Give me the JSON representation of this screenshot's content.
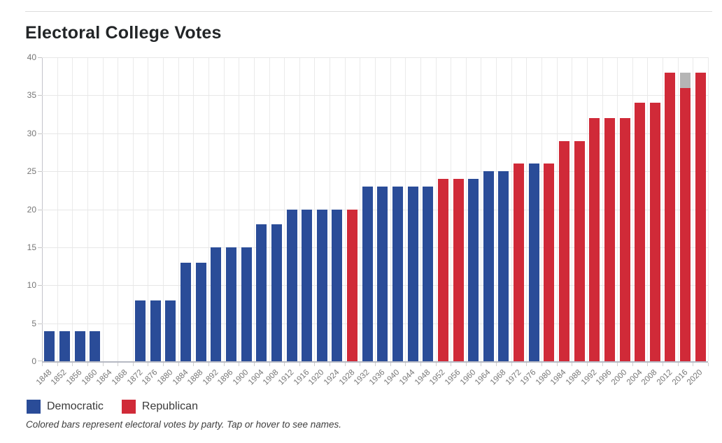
{
  "page": {
    "title": "Electoral College Votes",
    "footnote": "Colored bars represent electoral votes by party. Tap or hover to see names."
  },
  "legend": [
    {
      "label": "Democratic",
      "party": "democratic"
    },
    {
      "label": "Republican",
      "party": "republican"
    }
  ],
  "colors": {
    "democratic": "#2a4c98",
    "republican": "#d02a38",
    "other": "#b5b5b5",
    "grid": "#e7e7e7",
    "axis_vertical": "#c3c3cb",
    "axis_baseline": "#b6b9c3",
    "tick": "#c9c9c9",
    "axis_label": "#767676",
    "title_text": "#222527",
    "divider": "#dcdcdc"
  },
  "chart_data": {
    "type": "bar",
    "title": "Electoral College Votes",
    "xlabel": "",
    "ylabel": "",
    "ylim": [
      0,
      40
    ],
    "yticks": [
      0,
      5,
      10,
      15,
      20,
      25,
      30,
      35,
      40
    ],
    "grid": true,
    "legend_position": "bottom",
    "categories": [
      "1848",
      "1852",
      "1856",
      "1860",
      "1864",
      "1868",
      "1872",
      "1876",
      "1880",
      "1884",
      "1888",
      "1892",
      "1896",
      "1900",
      "1904",
      "1908",
      "1912",
      "1916",
      "1920",
      "1924",
      "1928",
      "1932",
      "1936",
      "1940",
      "1944",
      "1948",
      "1952",
      "1956",
      "1960",
      "1964",
      "1968",
      "1972",
      "1976",
      "1980",
      "1984",
      "1988",
      "1992",
      "1996",
      "2000",
      "2004",
      "2008",
      "2012",
      "2016",
      "2020"
    ],
    "bars": [
      {
        "year": "1848",
        "segments": [
          {
            "party": "democratic",
            "value": 4
          }
        ]
      },
      {
        "year": "1852",
        "segments": [
          {
            "party": "democratic",
            "value": 4
          }
        ]
      },
      {
        "year": "1856",
        "segments": [
          {
            "party": "democratic",
            "value": 4
          }
        ]
      },
      {
        "year": "1860",
        "segments": [
          {
            "party": "democratic",
            "value": 4
          }
        ]
      },
      {
        "year": "1864",
        "segments": []
      },
      {
        "year": "1868",
        "segments": []
      },
      {
        "year": "1872",
        "segments": [
          {
            "party": "democratic",
            "value": 8
          }
        ]
      },
      {
        "year": "1876",
        "segments": [
          {
            "party": "democratic",
            "value": 8
          }
        ]
      },
      {
        "year": "1880",
        "segments": [
          {
            "party": "democratic",
            "value": 8
          }
        ]
      },
      {
        "year": "1884",
        "segments": [
          {
            "party": "democratic",
            "value": 13
          }
        ]
      },
      {
        "year": "1888",
        "segments": [
          {
            "party": "democratic",
            "value": 13
          }
        ]
      },
      {
        "year": "1892",
        "segments": [
          {
            "party": "democratic",
            "value": 15
          }
        ]
      },
      {
        "year": "1896",
        "segments": [
          {
            "party": "democratic",
            "value": 15
          }
        ]
      },
      {
        "year": "1900",
        "segments": [
          {
            "party": "democratic",
            "value": 15
          }
        ]
      },
      {
        "year": "1904",
        "segments": [
          {
            "party": "democratic",
            "value": 18
          }
        ]
      },
      {
        "year": "1908",
        "segments": [
          {
            "party": "democratic",
            "value": 18
          }
        ]
      },
      {
        "year": "1912",
        "segments": [
          {
            "party": "democratic",
            "value": 20
          }
        ]
      },
      {
        "year": "1916",
        "segments": [
          {
            "party": "democratic",
            "value": 20
          }
        ]
      },
      {
        "year": "1920",
        "segments": [
          {
            "party": "democratic",
            "value": 20
          }
        ]
      },
      {
        "year": "1924",
        "segments": [
          {
            "party": "democratic",
            "value": 20
          }
        ]
      },
      {
        "year": "1928",
        "segments": [
          {
            "party": "republican",
            "value": 20
          }
        ]
      },
      {
        "year": "1932",
        "segments": [
          {
            "party": "democratic",
            "value": 23
          }
        ]
      },
      {
        "year": "1936",
        "segments": [
          {
            "party": "democratic",
            "value": 23
          }
        ]
      },
      {
        "year": "1940",
        "segments": [
          {
            "party": "democratic",
            "value": 23
          }
        ]
      },
      {
        "year": "1944",
        "segments": [
          {
            "party": "democratic",
            "value": 23
          }
        ]
      },
      {
        "year": "1948",
        "segments": [
          {
            "party": "democratic",
            "value": 23
          }
        ]
      },
      {
        "year": "1952",
        "segments": [
          {
            "party": "republican",
            "value": 24
          }
        ]
      },
      {
        "year": "1956",
        "segments": [
          {
            "party": "republican",
            "value": 24
          }
        ]
      },
      {
        "year": "1960",
        "segments": [
          {
            "party": "democratic",
            "value": 24
          }
        ]
      },
      {
        "year": "1964",
        "segments": [
          {
            "party": "democratic",
            "value": 25
          }
        ]
      },
      {
        "year": "1968",
        "segments": [
          {
            "party": "democratic",
            "value": 25
          }
        ]
      },
      {
        "year": "1972",
        "segments": [
          {
            "party": "republican",
            "value": 26
          }
        ]
      },
      {
        "year": "1976",
        "segments": [
          {
            "party": "democratic",
            "value": 26
          }
        ]
      },
      {
        "year": "1980",
        "segments": [
          {
            "party": "republican",
            "value": 26
          }
        ]
      },
      {
        "year": "1984",
        "segments": [
          {
            "party": "republican",
            "value": 29
          }
        ]
      },
      {
        "year": "1988",
        "segments": [
          {
            "party": "republican",
            "value": 29
          }
        ]
      },
      {
        "year": "1992",
        "segments": [
          {
            "party": "republican",
            "value": 32
          }
        ]
      },
      {
        "year": "1996",
        "segments": [
          {
            "party": "republican",
            "value": 32
          }
        ]
      },
      {
        "year": "2000",
        "segments": [
          {
            "party": "republican",
            "value": 32
          }
        ]
      },
      {
        "year": "2004",
        "segments": [
          {
            "party": "republican",
            "value": 34
          }
        ]
      },
      {
        "year": "2008",
        "segments": [
          {
            "party": "republican",
            "value": 34
          }
        ]
      },
      {
        "year": "2012",
        "segments": [
          {
            "party": "republican",
            "value": 38
          }
        ]
      },
      {
        "year": "2016",
        "segments": [
          {
            "party": "republican",
            "value": 36
          },
          {
            "party": "other",
            "value": 2
          }
        ]
      },
      {
        "year": "2020",
        "segments": [
          {
            "party": "republican",
            "value": 38
          }
        ]
      }
    ]
  }
}
